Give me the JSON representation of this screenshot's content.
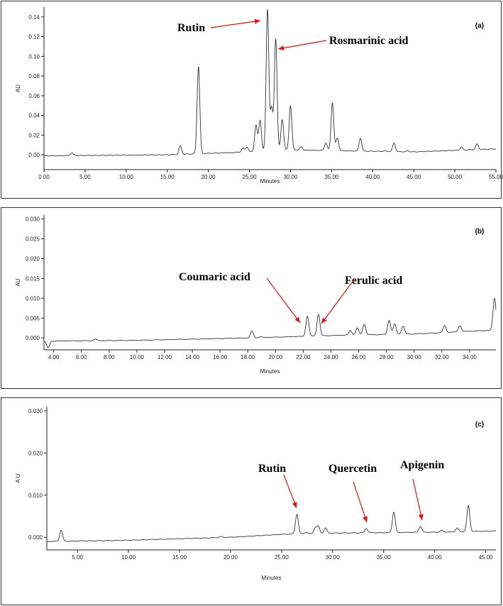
{
  "colors": {
    "trace": "#333333",
    "axis": "#222222",
    "arrow": "#ee1111",
    "background": "#ffffff"
  },
  "chart_data": [
    {
      "type": "line",
      "panel_label": "(a)",
      "xlabel": "Minutes",
      "ylabel": "AU",
      "xlim": [
        0,
        55
      ],
      "ylim": [
        -0.015,
        0.15
      ],
      "x_ticks": [
        0,
        5,
        10,
        15,
        20,
        25,
        30,
        35,
        40,
        45,
        50,
        55
      ],
      "x_tick_labels": [
        "0.00",
        "5.00",
        "10.00",
        "15.00",
        "20.00",
        "25.00",
        "30.00",
        "35.00",
        "40.00",
        "45.00",
        "50.00",
        "55.00"
      ],
      "y_ticks": [
        0,
        0.02,
        0.04,
        0.06,
        0.08,
        0.1,
        0.12,
        0.14
      ],
      "y_tick_labels": [
        "0.00",
        "0.02",
        "0.04",
        "0.06",
        "0.08",
        "0.10",
        "0.12",
        "0.14"
      ],
      "baseline": {
        "x": [
          0,
          15,
          25,
          30,
          45,
          55
        ],
        "y": [
          -0.001,
          0.0,
          0.003,
          0.005,
          0.003,
          0.006
        ]
      },
      "peaks": [
        {
          "x": 3.4,
          "y": 0.002
        },
        {
          "x": 16.6,
          "y": 0.009
        },
        {
          "x": 18.8,
          "y": 0.09
        },
        {
          "x": 22.8,
          "y": 0.002
        },
        {
          "x": 24.2,
          "y": 0.007
        },
        {
          "x": 24.7,
          "y": 0.008
        },
        {
          "x": 25.8,
          "y": 0.03
        },
        {
          "x": 26.3,
          "y": 0.035
        },
        {
          "x": 27.2,
          "y": 0.148
        },
        {
          "x": 27.7,
          "y": 0.047
        },
        {
          "x": 28.2,
          "y": 0.118
        },
        {
          "x": 29.0,
          "y": 0.036
        },
        {
          "x": 30.0,
          "y": 0.05
        },
        {
          "x": 31.3,
          "y": 0.008
        },
        {
          "x": 34.3,
          "y": 0.012
        },
        {
          "x": 35.1,
          "y": 0.053
        },
        {
          "x": 35.7,
          "y": 0.017
        },
        {
          "x": 38.5,
          "y": 0.017
        },
        {
          "x": 41.5,
          "y": 0.004
        },
        {
          "x": 42.6,
          "y": 0.012
        },
        {
          "x": 44.3,
          "y": 0.004
        },
        {
          "x": 50.8,
          "y": 0.008
        },
        {
          "x": 52.7,
          "y": 0.011
        }
      ],
      "annotations": [
        {
          "text": "Rutin",
          "x": 27.2,
          "y": 0.148
        },
        {
          "text": "Rosmarinic acid",
          "x": 28.2,
          "y": 0.118
        }
      ]
    },
    {
      "type": "line",
      "panel_label": "(b)",
      "xlabel": "Minutes",
      "ylabel": "AU",
      "xlim": [
        3.3,
        35.9
      ],
      "ylim": [
        -0.003,
        0.031
      ],
      "x_ticks": [
        4,
        6,
        8,
        10,
        12,
        14,
        16,
        18,
        20,
        22,
        24,
        26,
        28,
        30,
        32,
        34
      ],
      "x_tick_labels": [
        "4.00",
        "6.00",
        "8.00",
        "10.00",
        "12.00",
        "14.00",
        "16.00",
        "18.00",
        "20.00",
        "22.00",
        "24.00",
        "26.00",
        "28.00",
        "30.00",
        "32.00",
        "34.00"
      ],
      "y_ticks": [
        0,
        0.005,
        0.01,
        0.015,
        0.02,
        0.025,
        0.03
      ],
      "y_tick_labels": [
        "0.000",
        "0.005",
        "0.010",
        "0.015",
        "0.020",
        "0.025",
        "0.030"
      ],
      "baseline": {
        "x": [
          3.3,
          10,
          18,
          25,
          30,
          35.9
        ],
        "y": [
          -0.0008,
          -0.0006,
          0.0,
          0.0007,
          0.001,
          0.002
        ]
      },
      "peaks": [
        {
          "x": 3.6,
          "y": -0.0025
        },
        {
          "x": 7.0,
          "y": -0.0003
        },
        {
          "x": 18.3,
          "y": 0.0017
        },
        {
          "x": 18.9,
          "y": 0.0003
        },
        {
          "x": 22.3,
          "y": 0.0055
        },
        {
          "x": 23.1,
          "y": 0.006
        },
        {
          "x": 25.4,
          "y": 0.0019
        },
        {
          "x": 25.9,
          "y": 0.0025
        },
        {
          "x": 26.4,
          "y": 0.0035
        },
        {
          "x": 28.2,
          "y": 0.0045
        },
        {
          "x": 28.6,
          "y": 0.0035
        },
        {
          "x": 29.2,
          "y": 0.003
        },
        {
          "x": 32.2,
          "y": 0.0031
        },
        {
          "x": 33.3,
          "y": 0.0031
        },
        {
          "x": 35.8,
          "y": 0.01
        }
      ],
      "annotations": [
        {
          "text": "Coumaric acid",
          "x": 22.3,
          "y": 0.0055
        },
        {
          "text": "Ferulic acid",
          "x": 23.1,
          "y": 0.006
        }
      ]
    },
    {
      "type": "line",
      "panel_label": "(c)",
      "xlabel": "Minutes",
      "ylabel": "A U",
      "xlim": [
        2.0,
        46.0
      ],
      "ylim": [
        -0.003,
        0.031
      ],
      "x_ticks": [
        5,
        10,
        15,
        20,
        25,
        30,
        35,
        40,
        45
      ],
      "x_tick_labels": [
        "5.00",
        "10.00",
        "15.00",
        "20.00",
        "25.00",
        "30.00",
        "35.00",
        "40.00",
        "45.00"
      ],
      "y_ticks": [
        0,
        0.01,
        0.02,
        0.03
      ],
      "y_tick_labels": [
        "0.000",
        "0.010",
        "0.020",
        "0.030"
      ],
      "baseline": {
        "x": [
          2,
          10,
          20,
          25,
          30,
          40,
          46
        ],
        "y": [
          -0.001,
          -0.0007,
          0.0,
          0.0007,
          0.001,
          0.0012,
          0.0015
        ]
      },
      "peaks": [
        {
          "x": 3.4,
          "y": 0.0017
        },
        {
          "x": 19.0,
          "y": 0.0002
        },
        {
          "x": 26.5,
          "y": 0.0055
        },
        {
          "x": 27.4,
          "y": 0.0012
        },
        {
          "x": 28.3,
          "y": 0.0022
        },
        {
          "x": 28.6,
          "y": 0.0025
        },
        {
          "x": 29.3,
          "y": 0.0022
        },
        {
          "x": 33.3,
          "y": 0.0021
        },
        {
          "x": 36.0,
          "y": 0.006
        },
        {
          "x": 38.6,
          "y": 0.0026
        },
        {
          "x": 40.7,
          "y": 0.0016
        },
        {
          "x": 42.2,
          "y": 0.0022
        },
        {
          "x": 43.3,
          "y": 0.0075
        }
      ],
      "annotations": [
        {
          "text": "Rutin",
          "x": 26.5,
          "y": 0.0055
        },
        {
          "text": "Quercetin",
          "x": 33.3,
          "y": 0.0021
        },
        {
          "text": "Apigenin",
          "x": 38.6,
          "y": 0.0026
        }
      ]
    }
  ]
}
